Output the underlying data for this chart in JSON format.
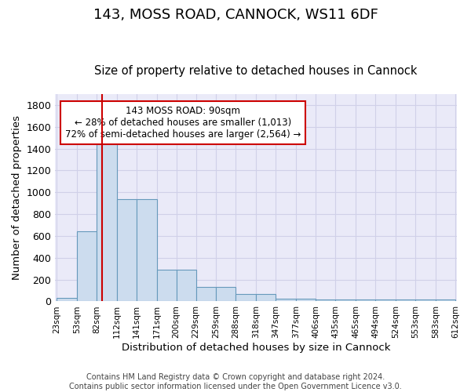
{
  "title": "143, MOSS ROAD, CANNOCK, WS11 6DF",
  "subtitle": "Size of property relative to detached houses in Cannock",
  "xlabel": "Distribution of detached houses by size in Cannock",
  "ylabel": "Number of detached properties",
  "bin_edges": [
    23,
    53,
    82,
    112,
    141,
    171,
    200,
    229,
    259,
    288,
    318,
    347,
    377,
    406,
    435,
    465,
    494,
    524,
    553,
    583,
    612
  ],
  "bar_heights": [
    35,
    645,
    1480,
    940,
    940,
    290,
    290,
    130,
    130,
    65,
    65,
    25,
    25,
    15,
    15,
    15,
    15,
    15,
    15,
    15
  ],
  "bar_color": "#ccdcee",
  "bar_edge_color": "#6699bb",
  "grid_color": "#d0d0e8",
  "background_color": "#eaeaf8",
  "red_line_x": 90,
  "red_line_color": "#cc0000",
  "annotation_line1": "143 MOSS ROAD: 90sqm",
  "annotation_line2": "← 28% of detached houses are smaller (1,013)",
  "annotation_line3": "72% of semi-detached houses are larger (2,564) →",
  "annotation_box_edgecolor": "#cc0000",
  "ylim": [
    0,
    1900
  ],
  "yticks": [
    0,
    200,
    400,
    600,
    800,
    1000,
    1200,
    1400,
    1600,
    1800
  ],
  "footer_line1": "Contains HM Land Registry data © Crown copyright and database right 2024.",
  "footer_line2": "Contains public sector information licensed under the Open Government Licence v3.0."
}
